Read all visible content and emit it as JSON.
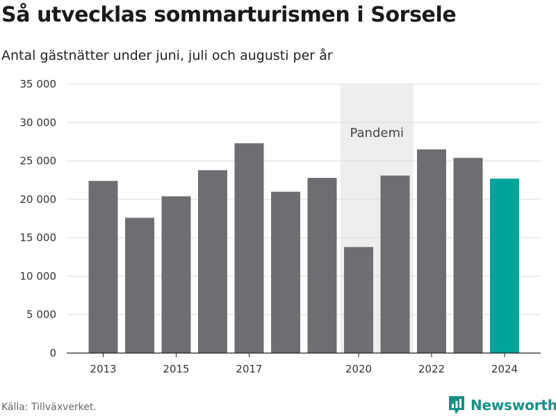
{
  "brand_name": "Newsworthy",
  "source_text": "Källa: Tillväxverket.",
  "chart_data": {
    "type": "bar",
    "title": "Så utvecklas sommarturismen i Sorsele",
    "subtitle": "Antal gästnätter under juni, juli och augusti per år",
    "categories": [
      "2013",
      "2014",
      "2015",
      "2016",
      "2017",
      "2018",
      "2019",
      "2020",
      "2021",
      "2022",
      "2023",
      "2024"
    ],
    "values": [
      22400,
      17600,
      20400,
      23800,
      27300,
      21000,
      22800,
      13800,
      23100,
      26500,
      25400,
      22700
    ],
    "x_tick_labels": [
      "2013",
      "2015",
      "2017",
      "2020",
      "2022",
      "2024"
    ],
    "y_ticks": [
      0,
      5000,
      10000,
      15000,
      20000,
      25000,
      30000,
      35000
    ],
    "y_tick_labels": [
      "0",
      "5 000",
      "10 000",
      "15 000",
      "20 000",
      "25 000",
      "30 000",
      "35 000"
    ],
    "ylim": [
      0,
      35000
    ],
    "xlabel": "",
    "ylabel": "",
    "grid": true,
    "highlight": {
      "category": "2024",
      "color": "#00a49a"
    },
    "bar_color": "#6e6d72",
    "annotation": {
      "text": "Pandemi",
      "from": "2019",
      "to": "2021",
      "shade_color": "#eeeeee"
    }
  }
}
